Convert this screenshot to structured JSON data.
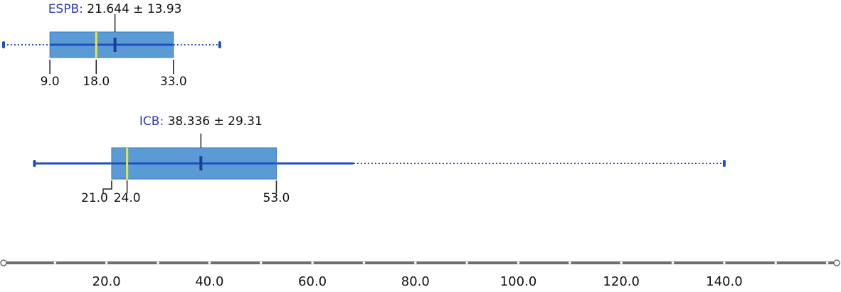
{
  "colors": {
    "box_fill": "#5b9bd5",
    "box_stroke": "#3a78c2",
    "whisker": "#1f4fbf",
    "median": "#e8e63a",
    "mean_marker": "#1b3f99",
    "series_label": "#2b3bbf",
    "text": "#111111",
    "axis": "#6e6e6e"
  },
  "chart_data": {
    "type": "box",
    "title": "",
    "xlabel": "",
    "ylabel": "",
    "xlim": [
      8,
      160
    ],
    "ticks": [
      20,
      40,
      60,
      80,
      100,
      120,
      140
    ],
    "tick_labels": [
      "20.0",
      "40.0",
      "60.0",
      "80.0",
      "100.0",
      "120.0",
      "140.0"
    ],
    "series": [
      {
        "name": "ESPB",
        "mean": 21.644,
        "sd": 13.93,
        "label_value": "21.644 ± 13.93",
        "q1": 9.0,
        "median": 18.0,
        "q3": 33.0,
        "whisker_low": 9.0,
        "whisker_high": 33.0,
        "extreme_low": 0.0,
        "extreme_high": 42.0,
        "stat_labels": [
          "9.0",
          "18.0",
          "33.0"
        ]
      },
      {
        "name": "ICB",
        "mean": 38.336,
        "sd": 29.31,
        "label_value": "38.336 ± 29.31",
        "q1": 21.0,
        "median": 24.0,
        "q3": 53.0,
        "whisker_low": 6.0,
        "whisker_high": 68.0,
        "extreme_low": 6.0,
        "extreme_high": 140.0,
        "stat_labels": [
          "21.0",
          "24.0",
          "53.0"
        ]
      }
    ]
  }
}
